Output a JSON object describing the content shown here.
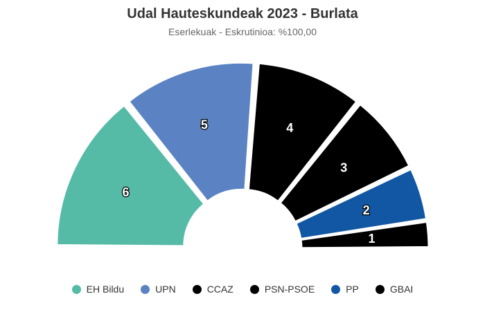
{
  "chart_data": {
    "type": "pie",
    "subtype": "parliament-semicircle",
    "title": "Udal Hauteskundeak 2023 - Burlata",
    "subtitle": "Eserlekuak - Eskrutinioa: %100,00",
    "categories": [
      "EH Bildu",
      "UPN",
      "CCAZ",
      "PSN-PSOE",
      "PP",
      "GBAI"
    ],
    "values": [
      6,
      5,
      4,
      3,
      2,
      1
    ],
    "colors": [
      "#55bba6",
      "#5b82c2",
      "#000000",
      "#000000",
      "#1157a4",
      "#000000"
    ],
    "legend_position": "bottom"
  }
}
